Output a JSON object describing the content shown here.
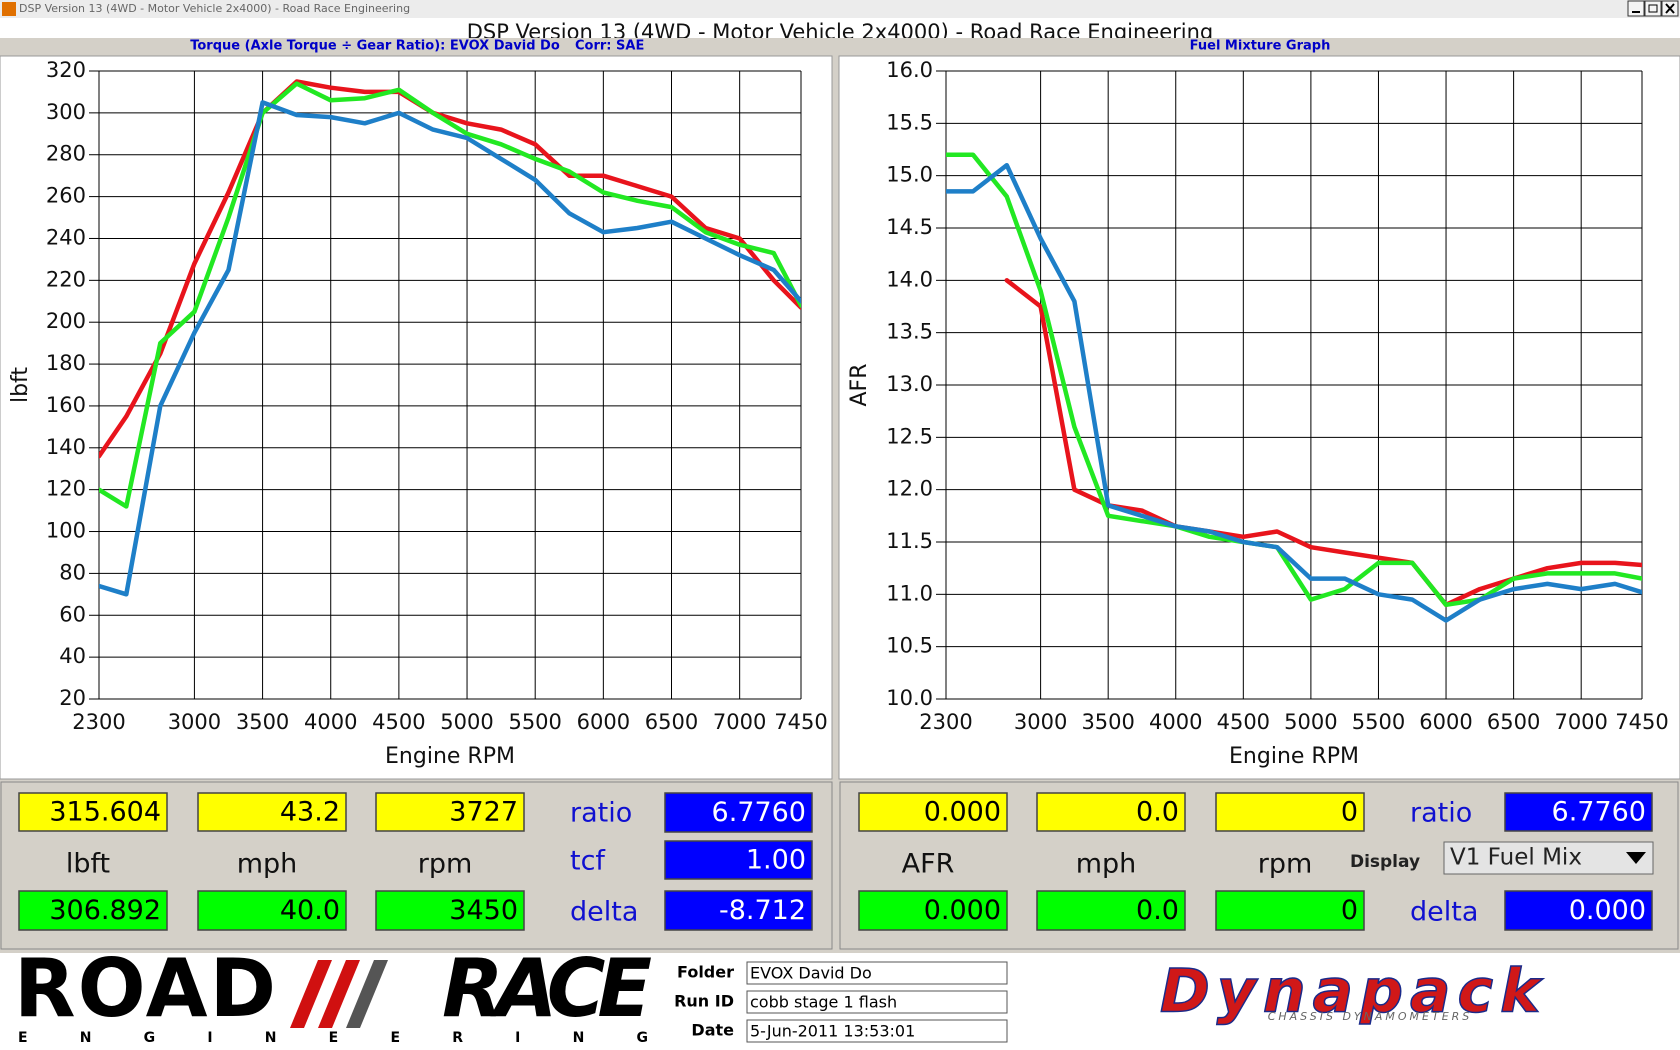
{
  "window": {
    "title": "DSP Version 13 (4WD - Motor Vehicle 2x4000) - Road Race Engineering"
  },
  "header": {
    "title": "DSP Version 13 (4WD - Motor Vehicle 2x4000) - Road Race Engineering"
  },
  "chart_data": [
    {
      "type": "line",
      "title": "Torque (Axle Torque ÷ Gear Ratio): EVOX David Do",
      "subtitle": "Corr: SAE",
      "xlabel": "Engine RPM",
      "ylabel": "lbft",
      "x": [
        2300,
        2500,
        2750,
        3000,
        3250,
        3500,
        3750,
        4000,
        4250,
        4500,
        4750,
        5000,
        5250,
        5500,
        5750,
        6000,
        6250,
        6500,
        6750,
        7000,
        7250,
        7450
      ],
      "series": [
        {
          "color": "#e8141c",
          "values": [
            136,
            155,
            185,
            228,
            262,
            300,
            315,
            312,
            310,
            310,
            300,
            295,
            292,
            285,
            270,
            270,
            265,
            260,
            245,
            240,
            220,
            207
          ]
        },
        {
          "color": "#22e822",
          "values": [
            120,
            112,
            190,
            205,
            250,
            300,
            314,
            306,
            307,
            311,
            300,
            290,
            285,
            278,
            272,
            262,
            258,
            255,
            243,
            237,
            233,
            208
          ]
        },
        {
          "color": "#1e7fc8",
          "values": [
            74,
            70,
            160,
            195,
            225,
            305,
            299,
            298,
            295,
            300,
            292,
            288,
            278,
            268,
            252,
            243,
            245,
            248,
            240,
            232,
            225,
            210
          ]
        }
      ],
      "xlim": [
        2300,
        7450
      ],
      "ylim": [
        20,
        320
      ],
      "xticks": [
        2300,
        3000,
        3500,
        4000,
        4500,
        5000,
        5500,
        6000,
        6500,
        7000,
        7450
      ],
      "yticks": [
        20,
        40,
        60,
        80,
        100,
        120,
        140,
        160,
        180,
        200,
        220,
        240,
        260,
        280,
        300,
        320
      ],
      "grid": true
    },
    {
      "type": "line",
      "title": "Fuel Mixture Graph",
      "xlabel": "Engine RPM",
      "ylabel": "AFR",
      "x": [
        2300,
        2500,
        2750,
        3000,
        3250,
        3500,
        3750,
        4000,
        4250,
        4500,
        4750,
        5000,
        5250,
        5500,
        5750,
        6000,
        6250,
        6500,
        6750,
        7000,
        7250,
        7450
      ],
      "series": [
        {
          "color": "#e8141c",
          "values": [
            null,
            null,
            14.0,
            13.75,
            12.0,
            11.85,
            11.8,
            11.65,
            11.6,
            11.55,
            11.6,
            11.45,
            11.4,
            11.35,
            11.3,
            10.9,
            11.05,
            11.15,
            11.25,
            11.3,
            11.3,
            11.28
          ]
        },
        {
          "color": "#22e822",
          "values": [
            15.2,
            15.2,
            14.8,
            13.9,
            12.6,
            11.75,
            11.7,
            11.65,
            11.55,
            11.5,
            11.45,
            10.95,
            11.05,
            11.3,
            11.3,
            10.9,
            10.95,
            11.15,
            11.2,
            11.2,
            11.2,
            11.15
          ]
        },
        {
          "color": "#1e7fc8",
          "values": [
            14.85,
            14.85,
            15.1,
            14.4,
            13.8,
            11.85,
            11.75,
            11.65,
            11.6,
            11.5,
            11.45,
            11.15,
            11.15,
            11.0,
            10.95,
            10.75,
            10.95,
            11.05,
            11.1,
            11.05,
            11.1,
            11.02
          ]
        }
      ],
      "xlim": [
        2300,
        7450
      ],
      "ylim": [
        10,
        16
      ],
      "xticks": [
        2300,
        3000,
        3500,
        4000,
        4500,
        5000,
        5500,
        6000,
        6500,
        7000,
        7450
      ],
      "yticks": [
        {
          "value": 10,
          "label": "10.0"
        },
        10.5,
        {
          "value": 11,
          "label": "11.0"
        },
        11.5,
        {
          "value": 12,
          "label": "12.0"
        },
        12.5,
        {
          "value": 13,
          "label": "13.0"
        },
        13.5,
        {
          "value": 14,
          "label": "14.0"
        },
        14.5,
        {
          "value": 15,
          "label": "15.0"
        },
        15.5,
        {
          "value": 16,
          "label": "16.0"
        }
      ],
      "grid": true
    }
  ],
  "readouts": [
    {
      "top": [
        "315.604",
        "43.2",
        "3727"
      ],
      "units": [
        "lbft",
        "mph",
        "rpm"
      ],
      "bottom": [
        "306.892",
        "40.0",
        "3450"
      ],
      "side_labels": [
        "ratio",
        "tcf",
        "delta"
      ],
      "side_values": [
        "6.7760",
        "1.00",
        "-8.712"
      ]
    },
    {
      "top": [
        "0.000",
        "0.0",
        "0"
      ],
      "units": [
        "AFR",
        "mph",
        "rpm"
      ],
      "bottom": [
        "0.000",
        "0.0",
        "0"
      ],
      "ratio_label": "ratio",
      "ratio_value": "6.7760",
      "display_label": "Display",
      "display_select": "V1 Fuel Mix",
      "delta_label": "delta",
      "delta_value": "0.000"
    }
  ],
  "footer": {
    "logo_road": "ROAD",
    "logo_race": "RACE",
    "logo_sub": "ENGINEERING",
    "fields": [
      {
        "label": "Folder",
        "value": "EVOX David Do"
      },
      {
        "label": "Run ID",
        "value": "cobb stage 1 flash"
      },
      {
        "label": "Date",
        "value": "5-Jun-2011 13:53:01"
      }
    ],
    "brand": "Dynapack",
    "brand_sub": "CHASSIS DYNAMOMETERS"
  }
}
